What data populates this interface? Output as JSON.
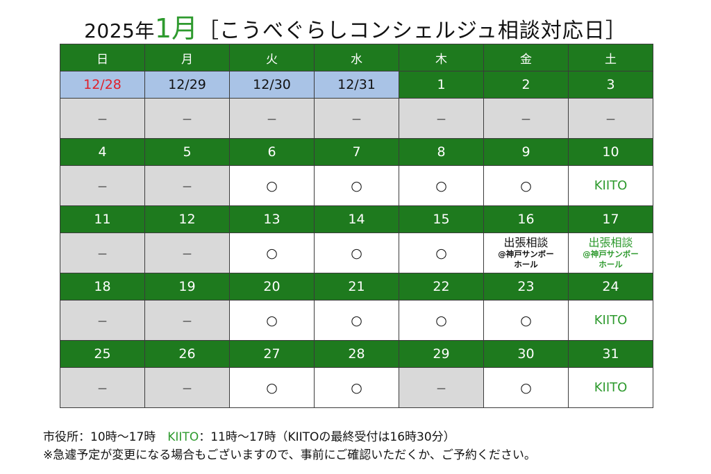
{
  "title": {
    "year": "2025年",
    "month": "1月",
    "subtitle": "［こうべぐらしコンシェルジュ相談対応日］"
  },
  "weekdays": [
    "日",
    "月",
    "火",
    "水",
    "木",
    "金",
    "土"
  ],
  "weeks": [
    {
      "days": [
        "12/28",
        "12/29",
        "12/30",
        "12/31",
        "1",
        "2",
        "3"
      ],
      "status": [
        "－",
        "－",
        "－",
        "－",
        "－",
        "－",
        "－"
      ]
    },
    {
      "days": [
        "4",
        "5",
        "6",
        "7",
        "8",
        "9",
        "10"
      ],
      "status": [
        "－",
        "－",
        "○",
        "○",
        "○",
        "○",
        "KIITO"
      ]
    },
    {
      "days": [
        "11",
        "12",
        "13",
        "14",
        "15",
        "16",
        "17"
      ],
      "status": [
        "－",
        "－",
        "○",
        "○",
        "○",
        "出張相談",
        "出張相談"
      ],
      "event_sub_line1": "@神戸サンボー",
      "event_sub_line2": "ホール"
    },
    {
      "days": [
        "18",
        "19",
        "20",
        "21",
        "22",
        "23",
        "24"
      ],
      "status": [
        "－",
        "－",
        "○",
        "○",
        "○",
        "○",
        "KIITO"
      ]
    },
    {
      "days": [
        "25",
        "26",
        "27",
        "28",
        "29",
        "30",
        "31"
      ],
      "status": [
        "－",
        "－",
        "○",
        "○",
        "－",
        "○",
        "KIITO"
      ]
    }
  ],
  "notes": {
    "city_hall": "市役所：10時～17時",
    "kiito_label": "KIITO",
    "kiito_hours": "：11時～17時（KIITOの最終受付は16時30分）",
    "disclaimer": "※急遽予定が変更になる場合もございますので、事前にご確認いただくか、ご予約ください。"
  },
  "colors": {
    "header_green": "#1e7a1e",
    "accent_green": "#2e9a2e",
    "prev_month_blue": "#a9c3e6",
    "closed_gray": "#d9d9d9",
    "sunday_red": "#e0202a"
  }
}
